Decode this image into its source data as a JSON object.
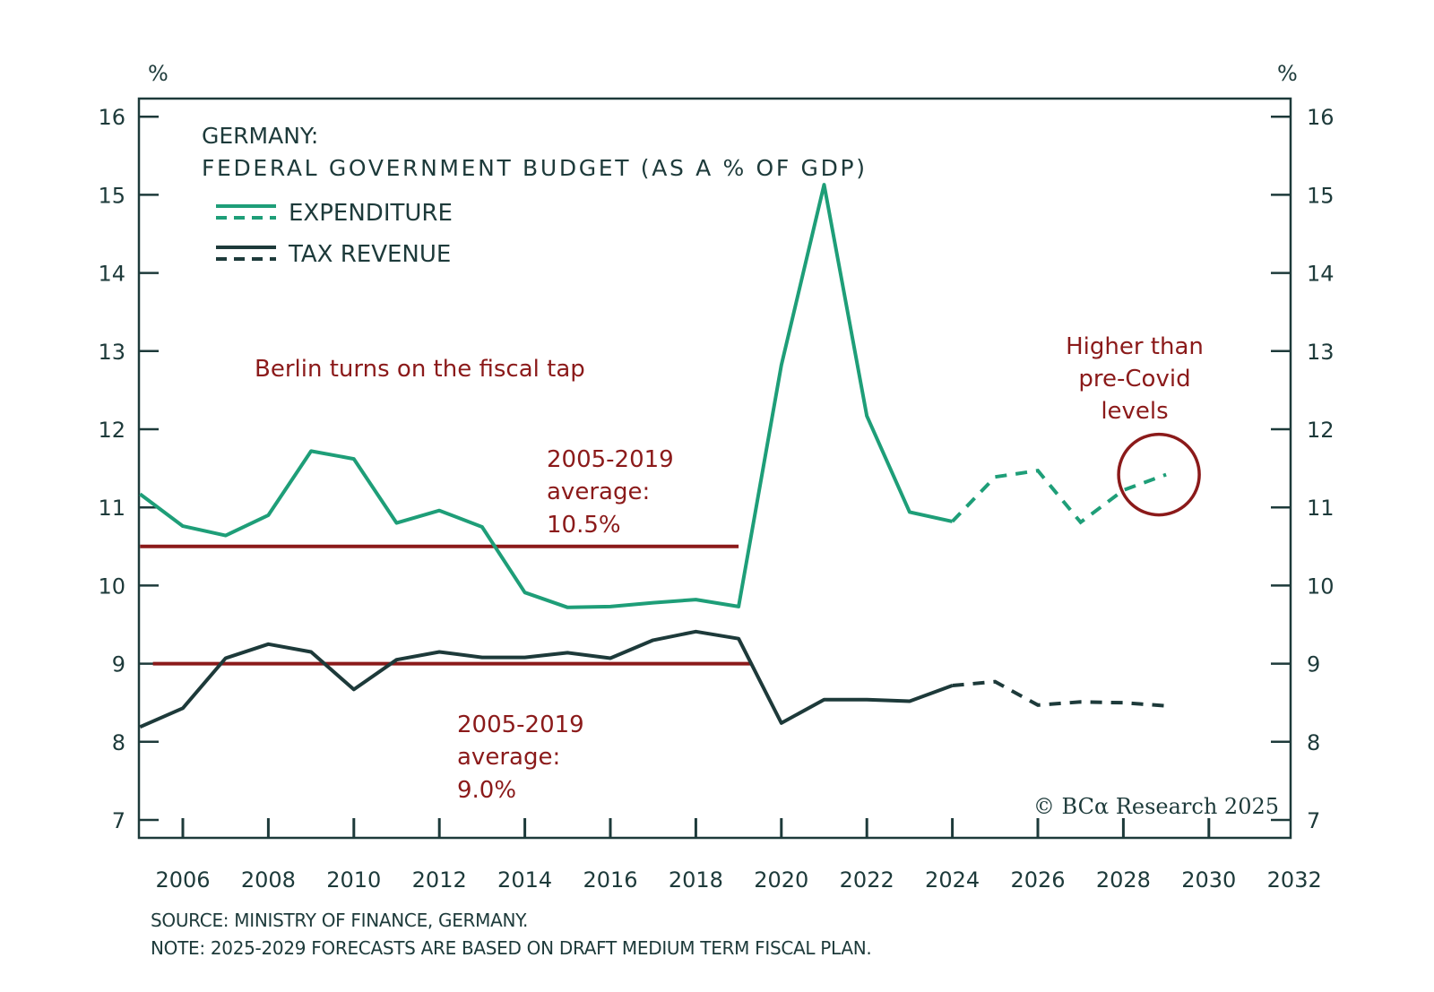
{
  "chart_data": {
    "type": "line",
    "title": "GERMANY:",
    "subtitle": "FEDERAL GOVERNMENT BUDGET (AS A % OF GDP)",
    "ylabel_left": "%",
    "ylabel_right": "%",
    "xlabel": "",
    "ylim": [
      7,
      16
    ],
    "xlim": [
      2005,
      2032
    ],
    "grid": false,
    "legend_placement": "top-left",
    "y_ticks": [
      7,
      8,
      9,
      10,
      11,
      12,
      13,
      14,
      15,
      16
    ],
    "x_ticks": [
      2006,
      2008,
      2010,
      2012,
      2014,
      2016,
      2018,
      2020,
      2022,
      2024,
      2026,
      2028,
      2030,
      2032
    ],
    "x": [
      2005,
      2006,
      2007,
      2008,
      2009,
      2010,
      2011,
      2012,
      2013,
      2014,
      2015,
      2016,
      2017,
      2018,
      2019,
      2020,
      2021,
      2022,
      2023,
      2024,
      2025,
      2026,
      2027,
      2028,
      2029
    ],
    "forecast_start": 2024,
    "series": [
      {
        "name": "EXPENDITURE",
        "color": "#1e9e78",
        "values": [
          11.17,
          10.76,
          10.64,
          10.9,
          11.72,
          11.62,
          10.8,
          10.96,
          10.75,
          9.91,
          9.72,
          9.73,
          9.78,
          9.82,
          9.73,
          12.82,
          15.13,
          12.17,
          10.94,
          10.82,
          11.39,
          11.47,
          10.81,
          11.22,
          11.42
        ]
      },
      {
        "name": "TAX REVENUE",
        "color": "#1d3a3a",
        "values": [
          8.19,
          8.43,
          9.07,
          9.25,
          9.15,
          8.67,
          9.05,
          9.15,
          9.08,
          9.08,
          9.14,
          9.07,
          9.3,
          9.41,
          9.32,
          8.24,
          8.54,
          8.54,
          8.52,
          8.72,
          8.77,
          8.47,
          8.51,
          8.5,
          8.46
        ]
      }
    ],
    "reference_lines": [
      {
        "name": "expenditure-average",
        "value": 10.5,
        "from": 2005,
        "to": 2019,
        "color": "#8b1a1a"
      },
      {
        "name": "tax-revenue-average",
        "value": 9.0,
        "from": 2005.3,
        "to": 2019.3,
        "color": "#8b1a1a"
      }
    ],
    "annotations": {
      "headline": "Berlin turns on the fiscal tap",
      "exp_avg": [
        "2005-2019",
        "average:",
        "10.5%"
      ],
      "tax_avg": [
        "2005-2019",
        "average:",
        "9.0%"
      ],
      "higher": [
        "Higher than",
        "pre-Covid",
        "levels"
      ],
      "highlight_circle": {
        "x": 2029,
        "y": 11.42,
        "color": "#8b1a1a"
      }
    },
    "copyright": "© BCα Research 2025"
  },
  "footer": {
    "source": "SOURCE: MINISTRY OF FINANCE, GERMANY.",
    "note": "NOTE: 2025-2029 FORECASTS ARE BASED ON DRAFT MEDIUM TERM FISCAL PLAN."
  }
}
